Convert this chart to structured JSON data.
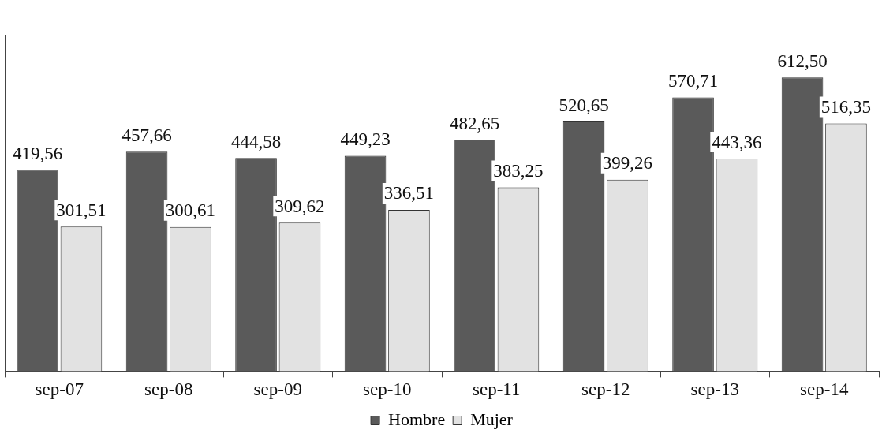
{
  "chart_data": {
    "type": "bar",
    "categories": [
      "sep-07",
      "sep-08",
      "sep-09",
      "sep-10",
      "sep-11",
      "sep-12",
      "sep-13",
      "sep-14"
    ],
    "series": [
      {
        "name": "Hombre",
        "color": "#5a5a5a",
        "values": [
          419.56,
          457.66,
          444.58,
          449.23,
          482.65,
          520.65,
          570.71,
          612.5
        ],
        "value_labels": [
          "419,56",
          "457,66",
          "444,58",
          "449,23",
          "482,65",
          "520,65",
          "570,71",
          "612,50"
        ]
      },
      {
        "name": "Mujer",
        "color": "#e2e2e2",
        "values": [
          301.51,
          300.61,
          309.62,
          336.51,
          383.25,
          399.26,
          443.36,
          516.35
        ],
        "value_labels": [
          "301,51",
          "300,61",
          "309,62",
          "336,51",
          "383,25",
          "399,26",
          "443,36",
          "516,35"
        ]
      }
    ],
    "legend": "bottom",
    "grid": false
  }
}
